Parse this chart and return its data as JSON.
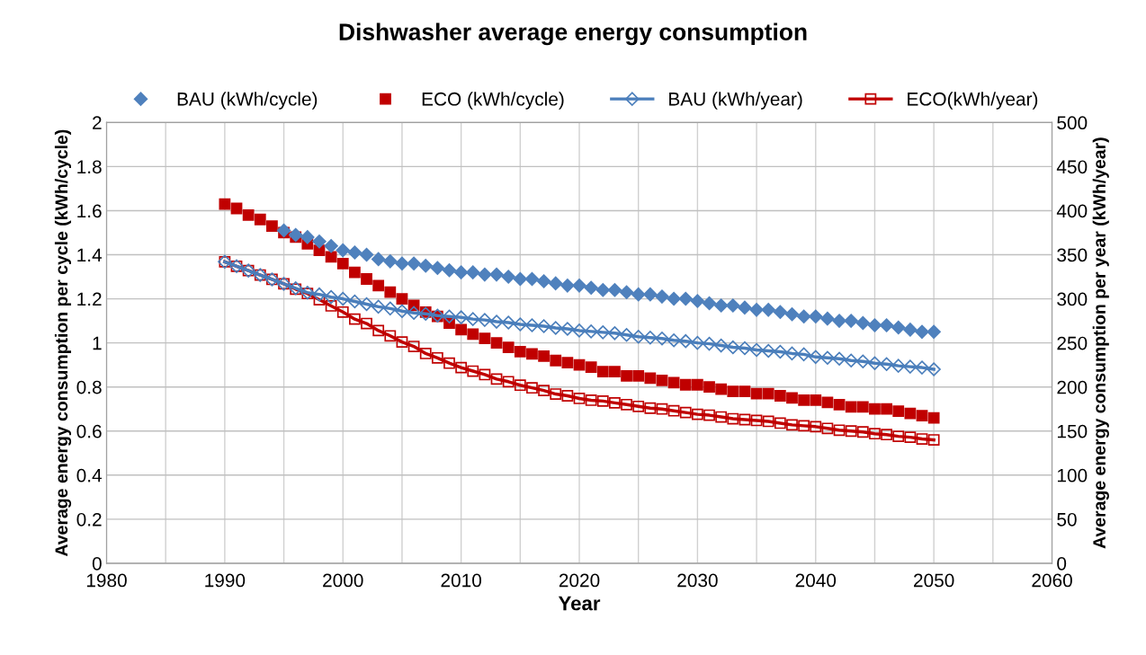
{
  "chart_data": {
    "type": "line",
    "title": "Dishwasher average energy consumption",
    "xlabel": "Year",
    "ylabel": "Average energy consumption per cycle (kWh/cycle)",
    "y2label": "Average energy consumption per year (kWh/year)",
    "x": [
      1990,
      1991,
      1992,
      1993,
      1994,
      1995,
      1996,
      1997,
      1998,
      1999,
      2000,
      2001,
      2002,
      2003,
      2004,
      2005,
      2006,
      2007,
      2008,
      2009,
      2010,
      2011,
      2012,
      2013,
      2014,
      2015,
      2016,
      2017,
      2018,
      2019,
      2020,
      2021,
      2022,
      2023,
      2024,
      2025,
      2026,
      2027,
      2028,
      2029,
      2030,
      2031,
      2032,
      2033,
      2034,
      2035,
      2036,
      2037,
      2038,
      2039,
      2040,
      2041,
      2042,
      2043,
      2044,
      2045,
      2046,
      2047,
      2048,
      2049,
      2050
    ],
    "series": [
      {
        "name": "BAU (kWh/cycle)",
        "type": "scatter",
        "marker": "diamond",
        "color": "#4f81bd",
        "values": [
          null,
          null,
          null,
          null,
          null,
          1.51,
          1.49,
          1.48,
          1.46,
          1.44,
          1.42,
          1.41,
          1.4,
          1.38,
          1.37,
          1.36,
          1.36,
          1.35,
          1.34,
          1.33,
          1.32,
          1.32,
          1.31,
          1.31,
          1.3,
          1.29,
          1.29,
          1.28,
          1.27,
          1.26,
          1.26,
          1.25,
          1.24,
          1.24,
          1.23,
          1.22,
          1.22,
          1.21,
          1.2,
          1.2,
          1.19,
          1.18,
          1.17,
          1.17,
          1.16,
          1.15,
          1.15,
          1.14,
          1.13,
          1.12,
          1.12,
          1.11,
          1.1,
          1.1,
          1.09,
          1.08,
          1.08,
          1.07,
          1.06,
          1.05,
          1.05
        ]
      },
      {
        "name": "ECO (kWh/cycle)",
        "type": "scatter",
        "marker": "square",
        "color": "#c00000",
        "values": [
          1.63,
          1.61,
          1.58,
          1.56,
          1.53,
          1.5,
          1.48,
          1.45,
          1.42,
          1.39,
          1.36,
          1.32,
          1.29,
          1.26,
          1.23,
          1.2,
          1.17,
          1.14,
          1.12,
          1.09,
          1.06,
          1.04,
          1.02,
          1.0,
          0.98,
          0.96,
          0.95,
          0.94,
          0.92,
          0.91,
          0.9,
          0.89,
          0.87,
          0.87,
          0.85,
          0.85,
          0.84,
          0.83,
          0.82,
          0.81,
          0.81,
          0.8,
          0.79,
          0.78,
          0.78,
          0.77,
          0.77,
          0.76,
          0.75,
          0.74,
          0.74,
          0.73,
          0.72,
          0.71,
          0.71,
          0.7,
          0.7,
          0.69,
          0.68,
          0.67,
          0.66
        ]
      },
      {
        "name": "BAU (kWh/year)",
        "marker": "diamond",
        "axis": "y2",
        "color": "#4a7ebb",
        "values": [
          342,
          337,
          332,
          327,
          322,
          317,
          312,
          307,
          305,
          302,
          300,
          297,
          294,
          291,
          289,
          286,
          284,
          283,
          281,
          280,
          279,
          277,
          276,
          274,
          273,
          271,
          270,
          269,
          267,
          266,
          264,
          263,
          262,
          261,
          259,
          257,
          256,
          255,
          253,
          252,
          250,
          249,
          247,
          245,
          244,
          242,
          241,
          240,
          238,
          237,
          234,
          233,
          232,
          230,
          229,
          227,
          226,
          224,
          223,
          222,
          220
        ]
      },
      {
        "name": "ECO(kWh/year)",
        "marker": "square",
        "axis": "y2",
        "color": "#c00000",
        "values": [
          342,
          337,
          332,
          327,
          322,
          317,
          311,
          306,
          299,
          292,
          285,
          277,
          272,
          264,
          258,
          251,
          246,
          238,
          233,
          227,
          222,
          218,
          214,
          209,
          206,
          202,
          199,
          196,
          192,
          190,
          187,
          185,
          184,
          182,
          180,
          178,
          176,
          175,
          173,
          171,
          169,
          168,
          166,
          164,
          163,
          162,
          161,
          159,
          157,
          156,
          155,
          153,
          151,
          150,
          149,
          147,
          146,
          144,
          143,
          141,
          140
        ]
      }
    ],
    "xlim": [
      1980,
      2060
    ],
    "xticks": [
      1980,
      {
        "value": 1985,
        "label": null
      },
      1990,
      {
        "value": 1995,
        "label": null
      },
      2000,
      {
        "value": 2005,
        "label": null
      },
      2010,
      {
        "value": 2015,
        "label": null
      },
      2020,
      {
        "value": 2025,
        "label": null
      },
      2030,
      {
        "value": 2035,
        "label": null
      },
      2040,
      {
        "value": 2045,
        "label": null
      },
      2050,
      {
        "value": 2055,
        "label": null
      },
      2060
    ],
    "ylim": [
      0,
      2
    ],
    "yticks": [
      0,
      0.2,
      0.4,
      0.6,
      0.8,
      1,
      1.2,
      1.4,
      1.6,
      1.8,
      2
    ],
    "y2lim": [
      0,
      500
    ],
    "y2ticks": [
      0,
      50,
      100,
      150,
      200,
      250,
      300,
      350,
      400,
      450,
      500
    ],
    "grid": true,
    "legend": "top"
  }
}
